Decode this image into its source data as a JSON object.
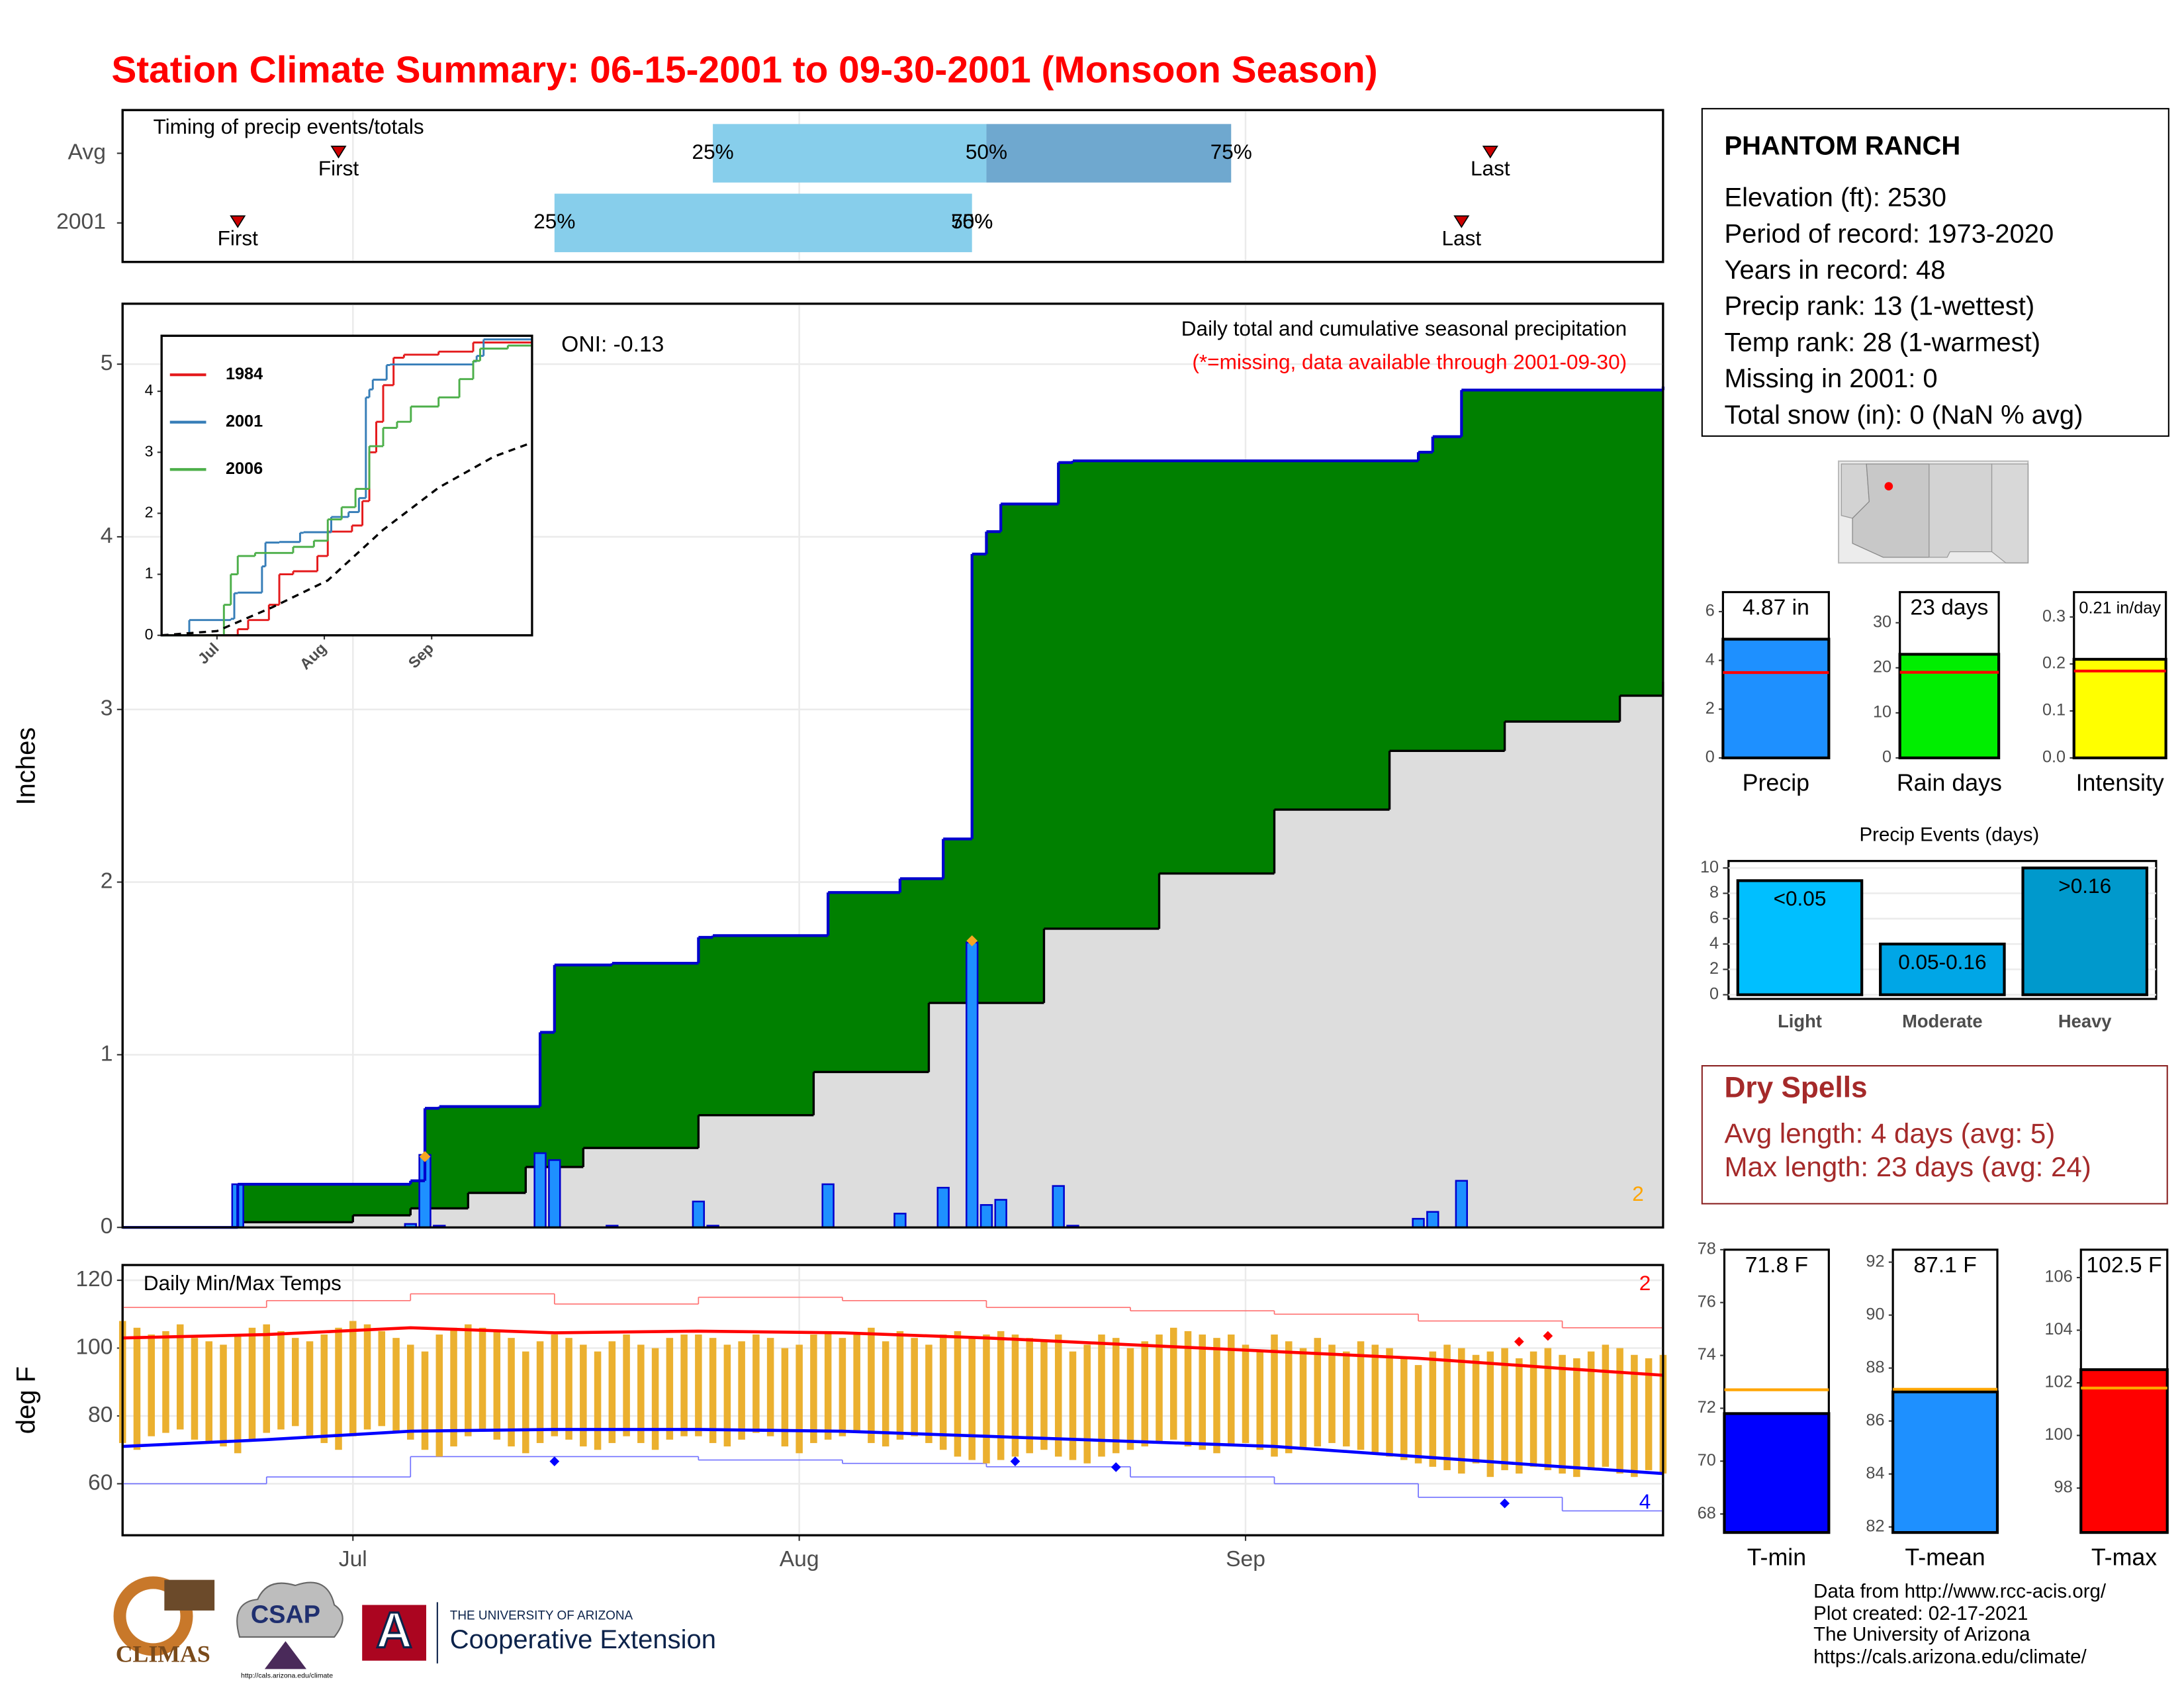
{
  "title": "Station Climate Summary: 06-15-2001 to 09-30-2001 (Monsoon Season)",
  "chart_data": [
    {
      "type": "timing",
      "title": "Timing of precip events/totals",
      "xlim": [
        0,
        107
      ],
      "xticks": [
        16,
        47,
        78
      ],
      "rows": [
        {
          "name": "Avg",
          "first": 15,
          "q25": 41,
          "q50": 60,
          "q75": 77,
          "last": 95
        },
        {
          "name": "2001",
          "first": 8,
          "q25": 30,
          "q50": 59,
          "q75": 59,
          "last": 93
        }
      ],
      "quantile_labels": [
        "25%",
        "50%",
        "75%"
      ],
      "first_label": "First",
      "last_label": "Last",
      "colors": [
        "#87ceeb",
        "#6fa8cf"
      ],
      "marker_color": "#cc0000"
    },
    {
      "type": "precip-area",
      "title": "Daily total and cumulative seasonal precipitation",
      "subtitle": "(*=missing, data available through 2001-09-30)",
      "annotation": "ONI: -0.13",
      "ylabel": "Inches",
      "xlim": [
        0,
        107
      ],
      "ylim": [
        0,
        5.35
      ],
      "yticks": [
        0,
        1,
        2,
        3,
        4,
        5
      ],
      "xticks": [
        16,
        47,
        78
      ],
      "grid": true,
      "count_label": "2",
      "count_color": "#ffa500",
      "series": [
        {
          "kind": "cumulative",
          "color": "#0000cd",
          "fill": "#008000",
          "x": [
            0,
            8,
            20,
            21,
            22,
            29,
            30,
            34,
            40,
            41,
            49,
            54,
            57,
            59,
            60,
            61,
            65,
            66,
            90,
            91,
            93,
            107
          ],
          "values": [
            0,
            0.25,
            0.27,
            0.69,
            0.7,
            1.13,
            1.52,
            1.53,
            1.68,
            1.69,
            1.94,
            2.02,
            2.25,
            3.9,
            4.03,
            4.19,
            4.43,
            4.44,
            4.49,
            4.58,
            4.85,
            4.87
          ]
        },
        {
          "kind": "average",
          "color": "#000000",
          "fill": "#dddddd",
          "x": [
            0,
            8,
            16,
            20,
            24,
            28,
            32,
            40,
            48,
            56,
            64,
            72,
            80,
            88,
            96,
            104,
            107
          ],
          "values": [
            0,
            0.03,
            0.07,
            0.11,
            0.2,
            0.35,
            0.46,
            0.65,
            0.9,
            1.3,
            1.73,
            2.05,
            2.42,
            2.76,
            2.93,
            3.08,
            3.16
          ]
        },
        {
          "kind": "daily",
          "color": "#1e90ff",
          "x": [
            8,
            20,
            21,
            22,
            29,
            30,
            34,
            40,
            41,
            49,
            54,
            57,
            59,
            60,
            61,
            65,
            66,
            90,
            91,
            93
          ],
          "values": [
            0.25,
            0.02,
            0.42,
            0.01,
            0.43,
            0.39,
            0.01,
            0.15,
            0.01,
            0.25,
            0.08,
            0.23,
            1.65,
            0.13,
            0.16,
            0.24,
            0.01,
            0.05,
            0.09,
            0.27
          ]
        },
        {
          "kind": "flag",
          "color": "#f5a623",
          "x": [
            21,
            59
          ],
          "values": [
            0.41,
            1.66
          ]
        }
      ]
    },
    {
      "type": "line",
      "xlim": [
        0,
        107
      ],
      "ylim": [
        0,
        4.91
      ],
      "yticks": [
        0,
        1,
        2,
        3,
        4
      ],
      "xticks": [
        {
          "value": 16,
          "label": "Jul"
        },
        {
          "value": 47,
          "label": "Aug"
        },
        {
          "value": 78,
          "label": "Sep"
        }
      ],
      "legend": "top-left",
      "series": [
        {
          "name": "1984",
          "color": "#e41a1c",
          "step": true,
          "x": [
            0,
            22,
            25,
            31,
            34,
            38,
            45,
            48,
            55,
            58,
            60,
            62,
            64,
            67,
            70,
            80,
            90,
            107
          ],
          "values": [
            0,
            0.1,
            0.25,
            0.5,
            1.0,
            1.05,
            1.3,
            1.7,
            1.8,
            2.2,
            3.0,
            3.5,
            4.1,
            4.55,
            4.6,
            4.65,
            4.8,
            4.82
          ]
        },
        {
          "name": "2001",
          "color": "#377eb8",
          "step": true,
          "x": [
            0,
            8,
            20,
            21,
            22,
            29,
            30,
            34,
            40,
            41,
            49,
            54,
            57,
            59,
            60,
            61,
            65,
            66,
            90,
            91,
            93,
            107
          ],
          "values": [
            0,
            0.25,
            0.27,
            0.69,
            0.7,
            1.13,
            1.52,
            1.53,
            1.68,
            1.69,
            1.94,
            2.02,
            2.25,
            3.9,
            4.03,
            4.19,
            4.43,
            4.44,
            4.49,
            4.58,
            4.85,
            4.87
          ]
        },
        {
          "name": "2006",
          "color": "#4daf4a",
          "step": true,
          "x": [
            0,
            18,
            20,
            22,
            27,
            38,
            44,
            48,
            52,
            56,
            60,
            64,
            68,
            72,
            80,
            86,
            90,
            92,
            100,
            107
          ],
          "values": [
            0,
            0.5,
            1.0,
            1.3,
            1.35,
            1.45,
            1.55,
            1.9,
            2.1,
            2.4,
            3.1,
            3.4,
            3.5,
            3.75,
            3.9,
            4.2,
            4.5,
            4.7,
            4.75,
            4.75
          ]
        },
        {
          "color": "#000000",
          "dash": true,
          "x": [
            0,
            16,
            32,
            48,
            64,
            80,
            96,
            107
          ],
          "values": [
            0,
            0.07,
            0.46,
            0.9,
            1.73,
            2.42,
            2.93,
            3.16
          ]
        }
      ]
    },
    {
      "type": "temperature",
      "title": "Daily Min/Max Temps",
      "ylabel": "deg F",
      "xlim": [
        0,
        107
      ],
      "ylim": [
        44.8,
        124.5
      ],
      "yticks": [
        60,
        80,
        100,
        120
      ],
      "xticks": [
        {
          "value": 16,
          "label": "Jul"
        },
        {
          "value": 47,
          "label": "Aug"
        },
        {
          "value": 78,
          "label": "Sep"
        }
      ],
      "grid": true,
      "range": {
        "color": "#ebb02f",
        "x": [
          0,
          1,
          2,
          3,
          4,
          5,
          6,
          7,
          8,
          9,
          10,
          11,
          12,
          13,
          14,
          15,
          16,
          17,
          18,
          19,
          20,
          21,
          22,
          23,
          24,
          25,
          26,
          27,
          28,
          29,
          30,
          31,
          32,
          33,
          34,
          35,
          36,
          37,
          38,
          39,
          40,
          41,
          42,
          43,
          44,
          45,
          46,
          47,
          48,
          49,
          50,
          51,
          52,
          53,
          54,
          55,
          56,
          57,
          58,
          59,
          60,
          61,
          62,
          63,
          64,
          65,
          66,
          67,
          68,
          69,
          70,
          71,
          72,
          73,
          74,
          75,
          76,
          77,
          78,
          79,
          80,
          81,
          82,
          83,
          84,
          85,
          86,
          87,
          88,
          89,
          90,
          91,
          92,
          93,
          94,
          95,
          96,
          97,
          98,
          99,
          100,
          101,
          102,
          103,
          104,
          105,
          106,
          107
        ],
        "high": [
          108,
          106,
          104,
          105,
          107,
          103,
          102,
          101,
          104,
          106,
          107,
          105,
          103,
          102,
          104,
          106,
          108,
          107,
          105,
          103,
          101,
          99,
          104,
          106,
          107,
          106,
          105,
          103,
          99,
          102,
          104,
          103,
          101,
          99,
          102,
          104,
          101,
          100,
          103,
          104,
          104,
          103,
          101,
          102,
          104,
          103,
          100,
          101,
          104,
          105,
          103,
          104,
          106,
          102,
          105,
          103,
          101,
          104,
          105,
          103,
          104,
          105,
          104,
          103,
          102,
          104,
          99,
          101,
          104,
          103,
          100,
          102,
          104,
          106,
          105,
          104,
          103,
          104,
          101,
          99,
          104,
          102,
          100,
          103,
          101,
          99,
          102,
          101,
          100,
          97,
          95,
          99,
          101,
          100,
          98,
          99,
          100,
          97,
          99,
          100,
          98,
          97,
          99,
          101,
          100,
          98,
          97,
          98
        ],
        "low": [
          72,
          70,
          74,
          75,
          76,
          73,
          72,
          71,
          69,
          73,
          75,
          76,
          77,
          74,
          72,
          70,
          74,
          76,
          77,
          75,
          73,
          70,
          68,
          71,
          74,
          76,
          73,
          71,
          69,
          72,
          74,
          73,
          71,
          70,
          72,
          74,
          72,
          70,
          73,
          74,
          74,
          72,
          71,
          73,
          75,
          74,
          71,
          69,
          72,
          73,
          74,
          75,
          72,
          71,
          73,
          74,
          72,
          70,
          68,
          67,
          66,
          67,
          68,
          69,
          70,
          68,
          67,
          66,
          68,
          69,
          70,
          71,
          72,
          73,
          71,
          70,
          69,
          71,
          72,
          70,
          68,
          69,
          70,
          71,
          72,
          71,
          70,
          69,
          68,
          67,
          66,
          65,
          64,
          63,
          66,
          62,
          64,
          63,
          65,
          64,
          63,
          62,
          64,
          65,
          63,
          62,
          64,
          63
        ]
      },
      "series": [
        {
          "kind": "record",
          "color": "#ff7070",
          "x": [
            0,
            10,
            20,
            30,
            40,
            50,
            60,
            70,
            80,
            90,
            100,
            107
          ],
          "values": [
            112,
            114,
            116,
            113,
            115,
            114,
            112,
            111,
            110,
            108,
            106,
            105
          ]
        },
        {
          "kind": "record",
          "color": "#7070ff",
          "x": [
            0,
            10,
            20,
            30,
            40,
            50,
            60,
            70,
            80,
            90,
            100,
            107
          ],
          "values": [
            60,
            62,
            68,
            68,
            67,
            66,
            65,
            62,
            60,
            56,
            52,
            52
          ]
        },
        {
          "kind": "average",
          "color": "#ff0000",
          "x": [
            0,
            10,
            20,
            30,
            40,
            50,
            60,
            70,
            80,
            90,
            100,
            107
          ],
          "values": [
            103,
            104,
            106,
            104.5,
            105,
            104.5,
            103,
            101,
            99,
            97,
            94,
            92
          ]
        },
        {
          "kind": "average",
          "color": "#0000ff",
          "x": [
            0,
            10,
            20,
            30,
            40,
            50,
            60,
            70,
            80,
            90,
            100,
            107
          ],
          "values": [
            71,
            73,
            75.5,
            76,
            76,
            75.5,
            74,
            72.5,
            71,
            68,
            65,
            63
          ]
        },
        {
          "kind": "markers",
          "color": "#ff0000",
          "x": [
            97,
            99
          ],
          "values": [
            101.9,
            103.6
          ],
          "count_label": "2"
        },
        {
          "kind": "markers",
          "color": "#0000ff",
          "x": [
            30,
            62,
            69,
            96
          ],
          "values": [
            66.6,
            66.6,
            64.9,
            54.2
          ],
          "count_label": "4"
        }
      ]
    },
    {
      "type": "single-bar",
      "category": "Precip",
      "value": 4.87,
      "value_label": "4.87 in",
      "avg": 3.5,
      "color": "#1e90ff",
      "avg_color": "#ff0000",
      "ylim": [
        0,
        6.8
      ],
      "yticks": [
        0,
        2,
        4,
        6
      ]
    },
    {
      "type": "single-bar",
      "category": "Rain days",
      "value": 23,
      "value_label": "23 days",
      "avg": 19,
      "color": "#00ee00",
      "avg_color": "#ff0000",
      "ylim": [
        0,
        36.8
      ],
      "yticks": [
        0,
        10,
        20,
        30
      ]
    },
    {
      "type": "single-bar",
      "category": "Intensity",
      "value": 0.21,
      "value_label": "0.21 in/day",
      "avg": 0.185,
      "color": "#ffff00",
      "avg_color": "#ff0000",
      "ylim": [
        0,
        0.353
      ],
      "yticks": [
        {
          "value": 0,
          "label": "0.0"
        },
        0.1,
        0.2,
        0.3
      ]
    },
    {
      "type": "bar",
      "title": "Precip Events (days)",
      "categories": [
        "Light",
        "Moderate",
        "Heavy"
      ],
      "values": [
        9,
        4,
        10
      ],
      "bar_labels": [
        "<0.05",
        "0.05-0.16",
        ">0.16"
      ],
      "colors": [
        "#00bfff",
        "#00a6e6",
        "#0099cc"
      ],
      "ylim": [
        -0.33,
        10.55
      ],
      "yticks": [
        0,
        2,
        4,
        6,
        8,
        10
      ],
      "grid": true
    },
    {
      "type": "single-bar",
      "category": "T-min",
      "value": 71.8,
      "value_label": "71.8 F",
      "avg": 72.7,
      "color": "#0000ff",
      "avg_color": "#ffa500",
      "ylim": [
        67.3,
        78
      ],
      "yticks": [
        68,
        70,
        72,
        74,
        76,
        78
      ]
    },
    {
      "type": "single-bar",
      "category": "T-mean",
      "value": 87.1,
      "value_label": "87.1 F",
      "avg": 87.2,
      "color": "#1e90ff",
      "avg_color": "#ffa500",
      "ylim": [
        81.79,
        92.47
      ],
      "yticks": [
        82,
        84,
        86,
        88,
        90,
        92
      ]
    },
    {
      "type": "single-bar",
      "category": "T-max",
      "value": 102.5,
      "value_label": "102.5 F",
      "avg": 101.8,
      "color": "#ff0000",
      "avg_color": "#ffa500",
      "ylim": [
        96.31,
        107.06
      ],
      "yticks": [
        98,
        100,
        102,
        104,
        106
      ]
    }
  ],
  "info": {
    "station": "PHANTOM RANCH",
    "lines": [
      "Elevation (ft): 2530",
      "Period of record: 1973-2020",
      "Years in record: 48",
      "Precip rank: 13 (1-wettest)",
      "Temp rank: 28 (1-warmest)",
      "Missing in 2001: 0",
      "Total snow (in): 0 (NaN % avg)"
    ]
  },
  "dry_spells": {
    "title": "Dry Spells",
    "lines": [
      "Avg length: 4 days (avg: 5)",
      "Max length: 23 days (avg: 24)"
    ]
  },
  "footer": [
    "Data from http://www.rcc-acis.org/",
    "Plot created: 02-17-2021",
    "The University of Arizona",
    "https://cals.arizona.edu/climate/"
  ],
  "logos": {
    "climas": "CLIMAS",
    "csap": "CSAP",
    "csap_url": "http://cals.arizona.edu/climate",
    "ua_mark": "A",
    "ua": "THE UNIVERSITY OF ARIZONA",
    "coop": "Cooperative Extension"
  }
}
